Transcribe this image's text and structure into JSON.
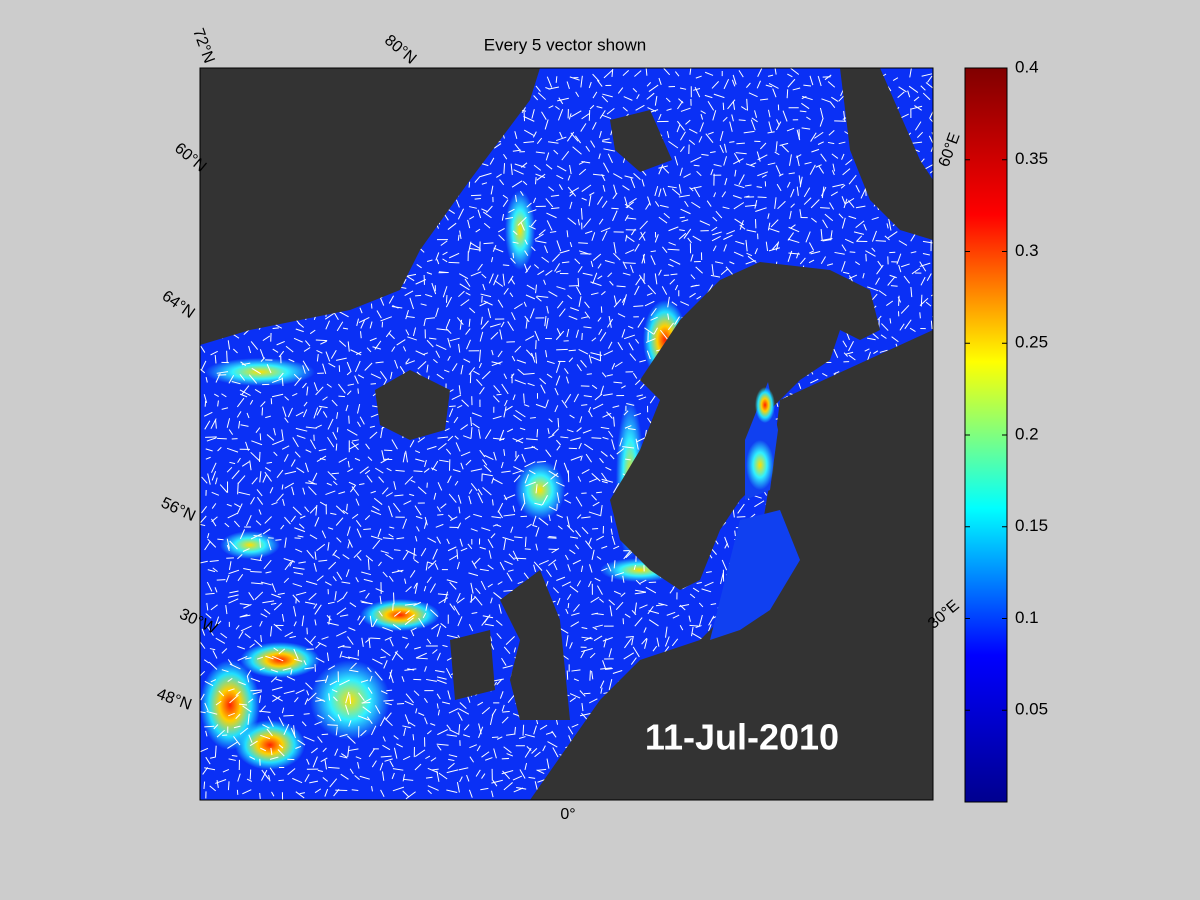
{
  "map": {
    "title": "Every 5 vector shown",
    "date_label": "11-Jul-2010",
    "graticule_labels": [
      "72°N",
      "80°N",
      "60°N",
      "64°N",
      "56°N",
      "30°W",
      "48°N",
      "0°",
      "60°E",
      "30°E"
    ],
    "colorbar": {
      "colors": [
        "#00008f",
        "#0000ff",
        "#00ffff",
        "#ffff00",
        "#ff0000",
        "#800000"
      ],
      "ylim": [
        0,
        0.4
      ],
      "yticks": [
        0.05,
        0.1,
        0.15,
        0.2,
        0.25,
        0.3,
        0.35,
        0.4
      ]
    }
  }
}
